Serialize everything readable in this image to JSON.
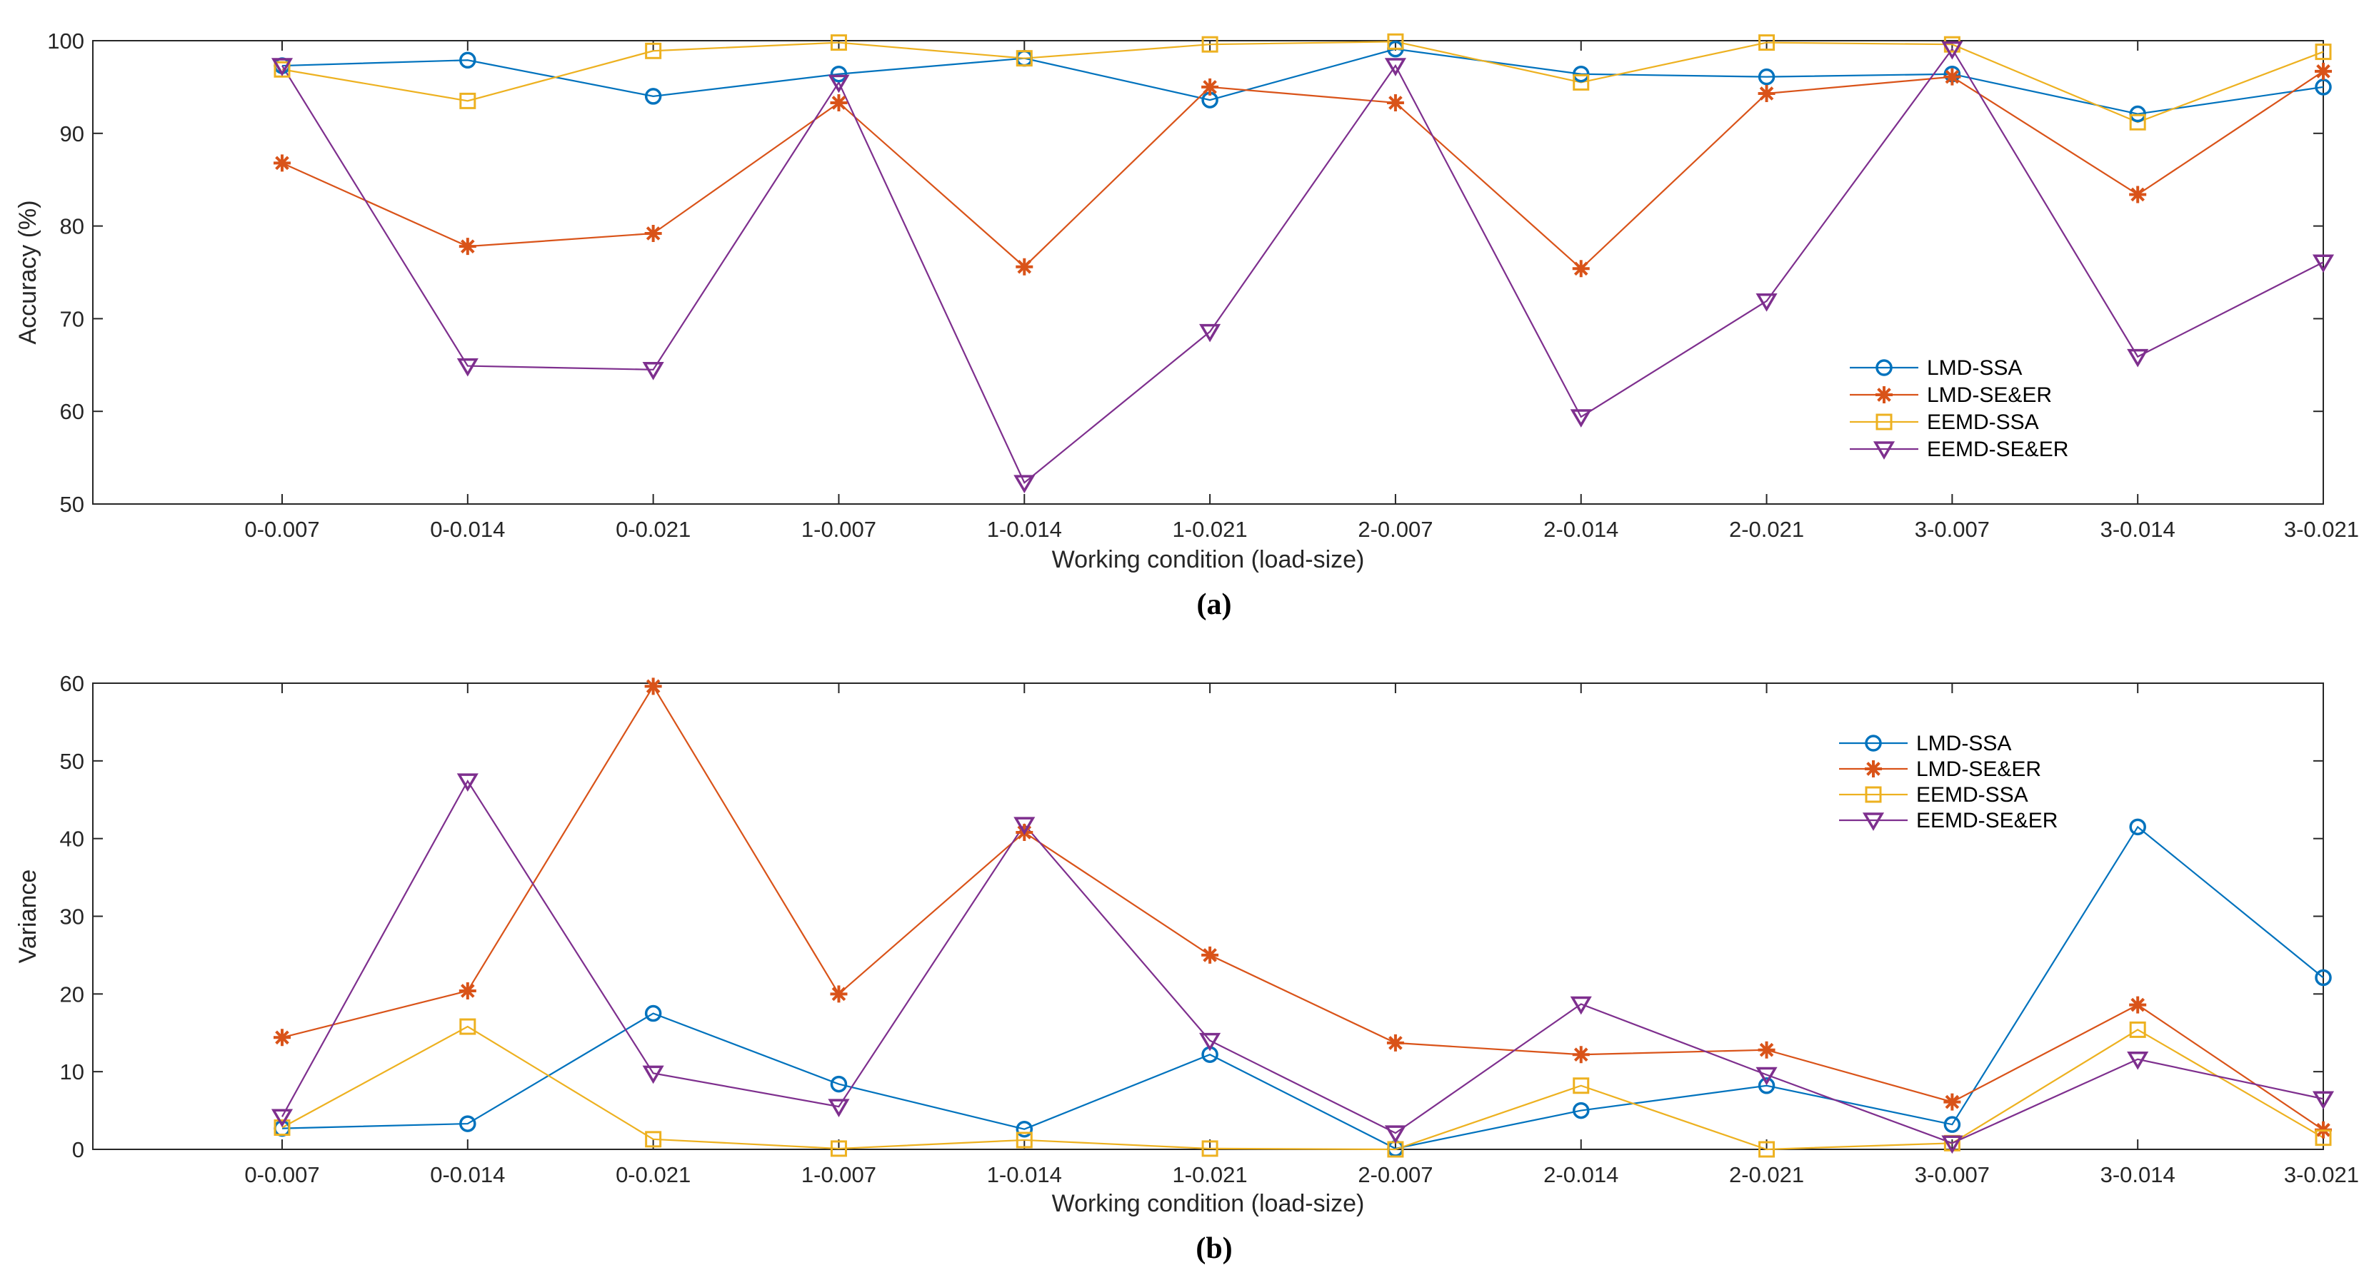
{
  "chart_data": [
    {
      "type": "line",
      "panel_label": "(a)",
      "xlabel": "Working condition (load-size)",
      "ylabel": "Accuracy (%)",
      "ylim": [
        50,
        100
      ],
      "yticks": [
        50,
        60,
        70,
        80,
        90,
        100
      ],
      "legend_position": "lower-right",
      "categories": [
        "0-0.007",
        "0-0.014",
        "0-0.021",
        "1-0.007",
        "1-0.014",
        "1-0.021",
        "2-0.007",
        "2-0.014",
        "2-0.021",
        "3-0.007",
        "3-0.014",
        "3-0.021"
      ],
      "series": [
        {
          "name": "LMD-SSA",
          "marker": "circle",
          "color": "#0072BD",
          "values": [
            97.3,
            97.9,
            94.0,
            96.4,
            98.1,
            93.6,
            99.1,
            96.4,
            96.1,
            96.4,
            92.1,
            95.0
          ]
        },
        {
          "name": "LMD-SE&ER",
          "marker": "star",
          "color": "#D95319",
          "values": [
            86.8,
            77.8,
            79.2,
            93.3,
            75.6,
            95.0,
            93.3,
            75.4,
            94.3,
            96.1,
            83.4,
            96.7
          ]
        },
        {
          "name": "EEMD-SSA",
          "marker": "square",
          "color": "#EDB120",
          "values": [
            96.9,
            93.5,
            98.9,
            99.8,
            98.1,
            99.6,
            99.9,
            95.5,
            99.8,
            99.6,
            91.2,
            98.8
          ]
        },
        {
          "name": "EEMD-SE&ER",
          "marker": "triangle-down",
          "color": "#7E2F8E",
          "values": [
            97.3,
            64.9,
            64.5,
            95.5,
            52.3,
            68.6,
            97.3,
            59.4,
            71.9,
            99.1,
            65.9,
            76.1
          ]
        }
      ]
    },
    {
      "type": "line",
      "panel_label": "(b)",
      "xlabel": "Working condition (load-size)",
      "ylabel": "Variance",
      "ylim": [
        0,
        60
      ],
      "yticks": [
        0,
        10,
        20,
        30,
        40,
        50,
        60
      ],
      "legend_position": "upper-right",
      "categories": [
        "0-0.007",
        "0-0.014",
        "0-0.021",
        "1-0.007",
        "1-0.014",
        "1-0.021",
        "2-0.007",
        "2-0.014",
        "2-0.021",
        "3-0.007",
        "3-0.014",
        "3-0.021"
      ],
      "series": [
        {
          "name": "LMD-SSA",
          "marker": "circle",
          "color": "#0072BD",
          "values": [
            2.7,
            3.3,
            17.5,
            8.4,
            2.6,
            12.2,
            0.1,
            5.0,
            8.2,
            3.2,
            41.5,
            22.1
          ]
        },
        {
          "name": "LMD-SE&ER",
          "marker": "star",
          "color": "#D95319",
          "values": [
            14.4,
            20.4,
            59.6,
            20.0,
            40.8,
            25.0,
            13.7,
            12.2,
            12.8,
            6.1,
            18.6,
            2.5
          ]
        },
        {
          "name": "EEMD-SSA",
          "marker": "square",
          "color": "#EDB120",
          "values": [
            2.8,
            15.8,
            1.3,
            0.1,
            1.2,
            0.1,
            0.0,
            8.2,
            0.0,
            0.8,
            15.4,
            1.5
          ]
        },
        {
          "name": "EEMD-SE&ER",
          "marker": "triangle-down",
          "color": "#7E2F8E",
          "values": [
            4.2,
            47.4,
            9.8,
            5.5,
            41.8,
            14.0,
            2.1,
            18.7,
            9.6,
            0.8,
            11.6,
            6.5
          ]
        }
      ]
    }
  ]
}
